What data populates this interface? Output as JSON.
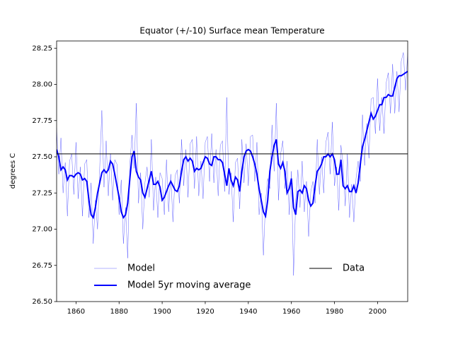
{
  "chart_data": {
    "type": "line",
    "title": "Equator (+/-10) Surface mean Temperature",
    "y_label": "degrees C",
    "xlim": [
      1851,
      2014
    ],
    "ylim": [
      26.5,
      28.3
    ],
    "xticks": [
      1860,
      1880,
      1900,
      1920,
      1940,
      1960,
      1980,
      2000
    ],
    "yticks": [
      {
        "value": 26.5,
        "label": "26.50"
      },
      26.75,
      {
        "value": 27,
        "label": "27.00"
      },
      27.25,
      {
        "value": 27.5,
        "label": "27.50"
      },
      27.75,
      {
        "value": 28,
        "label": "28.00"
      },
      28.25
    ],
    "x": [
      1851,
      1852,
      1853,
      1854,
      1855,
      1856,
      1857,
      1858,
      1859,
      1860,
      1861,
      1862,
      1863,
      1864,
      1865,
      1866,
      1867,
      1868,
      1869,
      1870,
      1871,
      1872,
      1873,
      1874,
      1875,
      1876,
      1877,
      1878,
      1879,
      1880,
      1881,
      1882,
      1883,
      1884,
      1885,
      1886,
      1887,
      1888,
      1889,
      1890,
      1891,
      1892,
      1893,
      1894,
      1895,
      1896,
      1897,
      1898,
      1899,
      1900,
      1901,
      1902,
      1903,
      1904,
      1905,
      1906,
      1907,
      1908,
      1909,
      1910,
      1911,
      1912,
      1913,
      1914,
      1915,
      1916,
      1917,
      1918,
      1919,
      1920,
      1921,
      1922,
      1923,
      1924,
      1925,
      1926,
      1927,
      1928,
      1929,
      1930,
      1931,
      1932,
      1933,
      1934,
      1935,
      1936,
      1937,
      1938,
      1939,
      1940,
      1941,
      1942,
      1943,
      1944,
      1945,
      1946,
      1947,
      1948,
      1949,
      1950,
      1951,
      1952,
      1953,
      1954,
      1955,
      1956,
      1957,
      1958,
      1959,
      1960,
      1961,
      1962,
      1963,
      1964,
      1965,
      1966,
      1967,
      1968,
      1969,
      1970,
      1971,
      1972,
      1973,
      1974,
      1975,
      1976,
      1977,
      1978,
      1979,
      1980,
      1981,
      1982,
      1983,
      1984,
      1985,
      1986,
      1987,
      1988,
      1989,
      1990,
      1991,
      1992,
      1993,
      1994,
      1995,
      1996,
      1997,
      1998,
      1999,
      2000,
      2001,
      2002,
      2003,
      2004,
      2005,
      2006,
      2007,
      2008,
      2009,
      2010,
      2011,
      2012,
      2013,
      2014
    ],
    "series": [
      {
        "name": "Model",
        "color": "#0000ff",
        "values": [
          27.7,
          27.38,
          27.63,
          27.25,
          27.46,
          27.09,
          27.47,
          27.52,
          27.24,
          27.6,
          27.21,
          27.43,
          27.09,
          27.45,
          27.48,
          27.08,
          27.32,
          26.9,
          27.2,
          27.0,
          27.42,
          27.82,
          27.29,
          27.61,
          27.23,
          27.52,
          27.2,
          27.48,
          27.45,
          27.1,
          27.34,
          26.9,
          27.15,
          26.8,
          27.45,
          27.65,
          27.42,
          27.87,
          27.18,
          27.39,
          27.0,
          27.32,
          27.43,
          27.22,
          27.62,
          27.13,
          27.36,
          27.08,
          27.39,
          27.35,
          27.1,
          27.48,
          27.12,
          27.38,
          27.05,
          27.37,
          27.41,
          27.18,
          27.62,
          27.3,
          27.55,
          27.22,
          27.59,
          27.62,
          27.28,
          27.64,
          27.23,
          27.47,
          27.21,
          27.6,
          27.64,
          27.33,
          27.66,
          27.32,
          27.55,
          27.23,
          27.58,
          27.61,
          27.26,
          27.91,
          27.24,
          27.39,
          27.05,
          27.46,
          27.49,
          27.14,
          27.62,
          27.32,
          27.59,
          27.3,
          27.64,
          27.65,
          27.33,
          27.6,
          27.1,
          27.25,
          26.82,
          27.19,
          27.35,
          27.28,
          27.72,
          27.4,
          27.87,
          27.2,
          27.52,
          27.61,
          27.28,
          27.47,
          27.1,
          27.4,
          26.68,
          27.2,
          27.41,
          27.15,
          27.47,
          27.12,
          27.33,
          26.95,
          27.26,
          27.33,
          27.18,
          27.62,
          27.24,
          27.5,
          27.25,
          27.6,
          27.67,
          27.38,
          27.74,
          27.3,
          27.43,
          27.13,
          27.58,
          27.45,
          27.16,
          27.52,
          27.08,
          27.31,
          27.05,
          27.35,
          27.47,
          27.33,
          27.79,
          27.44,
          27.73,
          27.49,
          27.9,
          27.91,
          27.66,
          28.04,
          27.68,
          27.91,
          27.66,
          28.01,
          28.08,
          27.8,
          28.14,
          27.8,
          28.09,
          27.81,
          28.16,
          28.22,
          27.96,
          28.22
        ]
      },
      {
        "name": "Model 5yr moving average",
        "color": "#0000ff",
        "values": [
          27.55,
          27.5,
          27.41,
          27.43,
          27.41,
          27.34,
          27.37,
          27.37,
          27.36,
          27.38,
          27.39,
          27.38,
          27.34,
          27.35,
          27.33,
          27.2,
          27.1,
          27.08,
          27.15,
          27.25,
          27.32,
          27.39,
          27.41,
          27.39,
          27.41,
          27.47,
          27.45,
          27.38,
          27.3,
          27.22,
          27.12,
          27.08,
          27.1,
          27.18,
          27.35,
          27.5,
          27.54,
          27.4,
          27.36,
          27.34,
          27.25,
          27.22,
          27.28,
          27.34,
          27.4,
          27.31,
          27.31,
          27.33,
          27.29,
          27.2,
          27.22,
          27.26,
          27.3,
          27.33,
          27.3,
          27.27,
          27.26,
          27.3,
          27.4,
          27.48,
          27.5,
          27.47,
          27.49,
          27.47,
          27.4,
          27.42,
          27.41,
          27.42,
          27.46,
          27.5,
          27.49,
          27.45,
          27.44,
          27.5,
          27.5,
          27.48,
          27.48,
          27.46,
          27.38,
          27.3,
          27.42,
          27.34,
          27.3,
          27.36,
          27.34,
          27.26,
          27.4,
          27.5,
          27.54,
          27.55,
          27.54,
          27.5,
          27.45,
          27.38,
          27.28,
          27.2,
          27.12,
          27.09,
          27.2,
          27.4,
          27.5,
          27.58,
          27.62,
          27.45,
          27.42,
          27.46,
          27.4,
          27.25,
          27.28,
          27.35,
          27.15,
          27.1,
          27.26,
          27.27,
          27.25,
          27.3,
          27.28,
          27.2,
          27.16,
          27.18,
          27.3,
          27.4,
          27.42,
          27.45,
          27.5,
          27.5,
          27.52,
          27.5,
          27.52,
          27.48,
          27.38,
          27.38,
          27.48,
          27.3,
          27.28,
          27.3,
          27.26,
          27.26,
          27.3,
          27.25,
          27.32,
          27.45,
          27.57,
          27.62,
          27.68,
          27.74,
          27.8,
          27.76,
          27.78,
          27.82,
          27.86,
          27.86,
          27.91,
          27.91,
          27.93,
          27.92,
          27.92,
          27.98,
          28.04,
          28.06,
          28.06,
          28.07,
          28.08,
          28.09
        ]
      },
      {
        "name": "Data",
        "color": "#000000",
        "x": [
          1851,
          2014
        ],
        "values": [
          27.52,
          27.52
        ]
      }
    ]
  }
}
